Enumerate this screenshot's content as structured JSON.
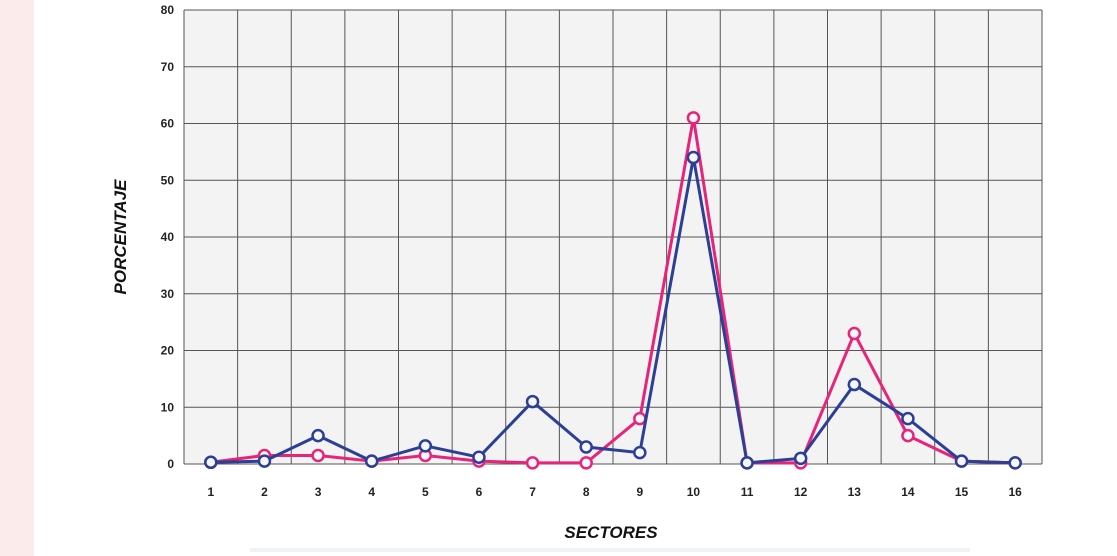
{
  "chart_data": {
    "type": "line",
    "title": "",
    "xlabel": "SECTORES",
    "ylabel": "PORCENTAJE",
    "categories": [
      "1",
      "2",
      "3",
      "4",
      "5",
      "6",
      "7",
      "8",
      "9",
      "10",
      "11",
      "12",
      "13",
      "14",
      "15",
      "16"
    ],
    "ylim": [
      0,
      80
    ],
    "yticks": [
      0,
      10,
      20,
      30,
      40,
      50,
      60,
      70,
      80
    ],
    "grid": true,
    "legend": "none",
    "series": [
      {
        "color": "#e8247a",
        "values": [
          0.3,
          1.5,
          1.5,
          0.5,
          1.5,
          0.5,
          0.2,
          0.2,
          8,
          61,
          0.2,
          0.2,
          23,
          5,
          0.5,
          0.2
        ]
      },
      {
        "color": "#2b3f96",
        "values": [
          0.3,
          0.5,
          5,
          0.5,
          3.2,
          1.2,
          11,
          3,
          2,
          54,
          0.2,
          1,
          14,
          8,
          0.5,
          0.2
        ]
      }
    ]
  },
  "colors": {
    "background_band": "#fbeceb",
    "plot_background": "#f3f3f3",
    "grid": "#555555"
  }
}
